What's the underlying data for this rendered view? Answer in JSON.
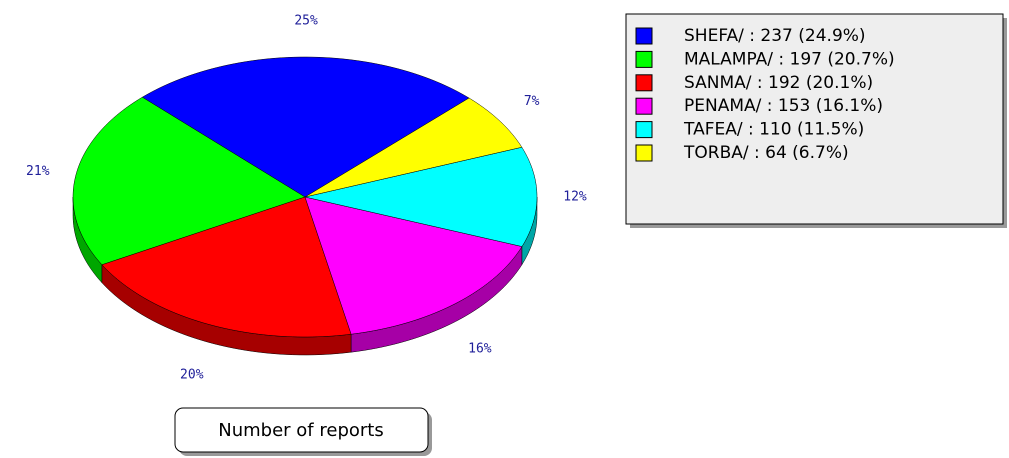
{
  "chart_data": {
    "type": "pie3d",
    "title": "Number of reports",
    "legend_labels": [
      "SHEFA/ : 237 (24.9%)",
      "MALAMPA/ : 197 (20.7%)",
      "SANMA/ : 192 (20.1%)",
      "PENAMA/ : 153 (16.1%)",
      "TAFEA/ : 110 (11.5%)",
      "TORBA/ : 64 (6.7%)"
    ],
    "values": [
      237,
      197,
      192,
      153,
      110,
      64
    ],
    "percent_labels": [
      "25%",
      "21%",
      "20%",
      "16%",
      "12%",
      "7%"
    ],
    "colors": [
      "#0000ff",
      "#00ff00",
      "#ff0000",
      "#ff00ff",
      "#00ffff",
      "#ffff00"
    ],
    "legend": "top-right"
  }
}
